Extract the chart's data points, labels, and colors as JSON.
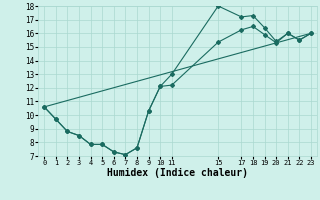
{
  "bg_color": "#cff0ea",
  "line_color": "#1a6b60",
  "grid_color": "#aad8d0",
  "xlabel": "Humidex (Indice chaleur)",
  "xlim": [
    -0.5,
    23.5
  ],
  "ylim": [
    7,
    18
  ],
  "yticks": [
    7,
    8,
    9,
    10,
    11,
    12,
    13,
    14,
    15,
    16,
    17,
    18
  ],
  "xtick_positions": [
    0,
    1,
    2,
    3,
    4,
    5,
    6,
    7,
    8,
    9,
    10,
    11,
    15,
    17,
    18,
    19,
    20,
    21,
    22,
    23
  ],
  "xtick_labels": [
    "0",
    "1",
    "2",
    "3",
    "4",
    "5",
    "6",
    "7",
    "8",
    "9",
    "10",
    "11",
    "15",
    "17",
    "18",
    "19",
    "20",
    "21",
    "22",
    "23"
  ],
  "line1_x": [
    0,
    1,
    2,
    3,
    4,
    5,
    6,
    7,
    8,
    9,
    10,
    11,
    15,
    17,
    18,
    19,
    20,
    21,
    22,
    23
  ],
  "line1_y": [
    10.6,
    9.7,
    8.8,
    8.5,
    7.85,
    7.85,
    7.3,
    7.1,
    7.6,
    10.3,
    12.1,
    12.2,
    15.35,
    16.25,
    16.5,
    15.9,
    15.3,
    16.0,
    15.5,
    16.0
  ],
  "line2_x": [
    0,
    1,
    2,
    3,
    4,
    5,
    6,
    7,
    8,
    9,
    10,
    11,
    15,
    17,
    18,
    19,
    20,
    21,
    22,
    23
  ],
  "line2_y": [
    10.6,
    9.7,
    8.8,
    8.5,
    7.85,
    7.85,
    7.3,
    7.1,
    7.6,
    10.3,
    12.1,
    13.0,
    18.0,
    17.2,
    17.3,
    16.4,
    15.4,
    16.0,
    15.5,
    16.0
  ],
  "line3_x": [
    0,
    23
  ],
  "line3_y": [
    10.6,
    16.0
  ]
}
